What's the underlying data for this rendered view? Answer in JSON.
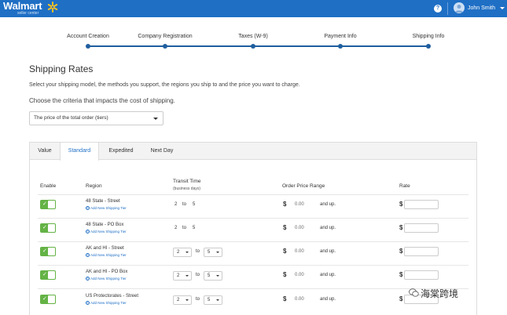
{
  "header": {
    "brand": "Walmart",
    "brand_sub": "seller center",
    "help_label": "?",
    "user_name": "John Smith"
  },
  "stepper": {
    "steps": [
      "Account Creation",
      "Company Registration",
      "Taxes (W-9)",
      "Payment Info",
      "Shipping Info"
    ]
  },
  "page": {
    "title": "Shipping Rates",
    "description": "Select your shipping model, the methods you support, the regions you ship to and the price you want to charge.",
    "criteria_prompt": "Choose the criteria that impacts the cost of shipping.",
    "criteria_select": "The price of the total order (tiers)"
  },
  "tabs": [
    "Value",
    "Standard",
    "Expedited",
    "Next Day"
  ],
  "active_tab": "Standard",
  "table": {
    "headers": {
      "enable": "Enable",
      "region": "Region",
      "transit": "Transit Time",
      "transit_sub": "(business days)",
      "order_range": "Order Price Range",
      "rate": "Rate"
    },
    "add_tier": "Add New Shipping Tier",
    "to_label": "to",
    "currency": "$",
    "and_up": "and up.",
    "rows": [
      {
        "region": "48 State - Street",
        "from": "2",
        "to": "5",
        "price": "0.00",
        "dropdown": false
      },
      {
        "region": "48 State - PO Box",
        "from": "2",
        "to": "5",
        "price": "0.00",
        "dropdown": false
      },
      {
        "region": "AK and HI - Street",
        "from": "2",
        "to": "5",
        "price": "0.00",
        "dropdown": true
      },
      {
        "region": "AK and HI - PO Box",
        "from": "2",
        "to": "5",
        "price": "0.00",
        "dropdown": true
      },
      {
        "region": "US Protectorates - Street",
        "from": "2",
        "to": "5",
        "price": "0.00",
        "dropdown": true
      }
    ]
  },
  "watermark": "海棠跨境",
  "colors": {
    "topbar": "#1f6fc5",
    "accent": "#1f6fc5",
    "toggle_on": "#64b345",
    "spark": "#ffc220"
  }
}
